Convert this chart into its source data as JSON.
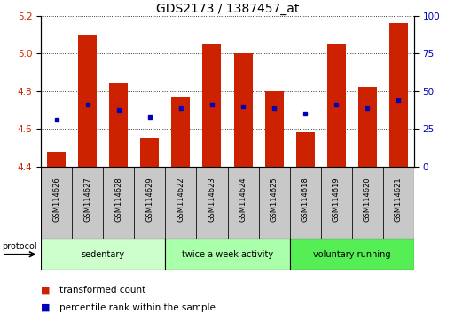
{
  "title": "GDS2173 / 1387457_at",
  "categories": [
    "GSM114626",
    "GSM114627",
    "GSM114628",
    "GSM114629",
    "GSM114622",
    "GSM114623",
    "GSM114624",
    "GSM114625",
    "GSM114618",
    "GSM114619",
    "GSM114620",
    "GSM114621"
  ],
  "bar_values": [
    4.48,
    5.1,
    4.84,
    4.55,
    4.77,
    5.05,
    5.0,
    4.8,
    4.58,
    5.05,
    4.82,
    5.16
  ],
  "blue_dot_values": [
    4.65,
    4.73,
    4.7,
    4.66,
    4.71,
    4.73,
    4.72,
    4.71,
    4.68,
    4.73,
    4.71,
    4.75
  ],
  "ylim_left": [
    4.4,
    5.2
  ],
  "ylim_right": [
    0,
    100
  ],
  "yticks_left": [
    4.4,
    4.6,
    4.8,
    5.0,
    5.2
  ],
  "yticks_right": [
    0,
    25,
    50,
    75,
    100
  ],
  "bar_color": "#cc2200",
  "dot_color": "#0000bb",
  "groups": [
    {
      "label": "sedentary",
      "start": 0,
      "end": 4,
      "color": "#ccffcc"
    },
    {
      "label": "twice a week activity",
      "start": 4,
      "end": 8,
      "color": "#aaffaa"
    },
    {
      "label": "voluntary running",
      "start": 8,
      "end": 12,
      "color": "#55ee55"
    }
  ],
  "protocol_label": "protocol",
  "legend_items": [
    {
      "label": "transformed count",
      "color": "#cc2200"
    },
    {
      "label": "percentile rank within the sample",
      "color": "#0000bb"
    }
  ],
  "bar_bottom": 4.4,
  "background_color": "#ffffff",
  "plot_bg": "#ffffff",
  "bar_width": 0.6,
  "title_fontsize": 10,
  "tick_fontsize": 7.5,
  "label_fontsize": 7,
  "cat_fontsize": 6,
  "group_fontsize": 7,
  "legend_fontsize": 7.5
}
